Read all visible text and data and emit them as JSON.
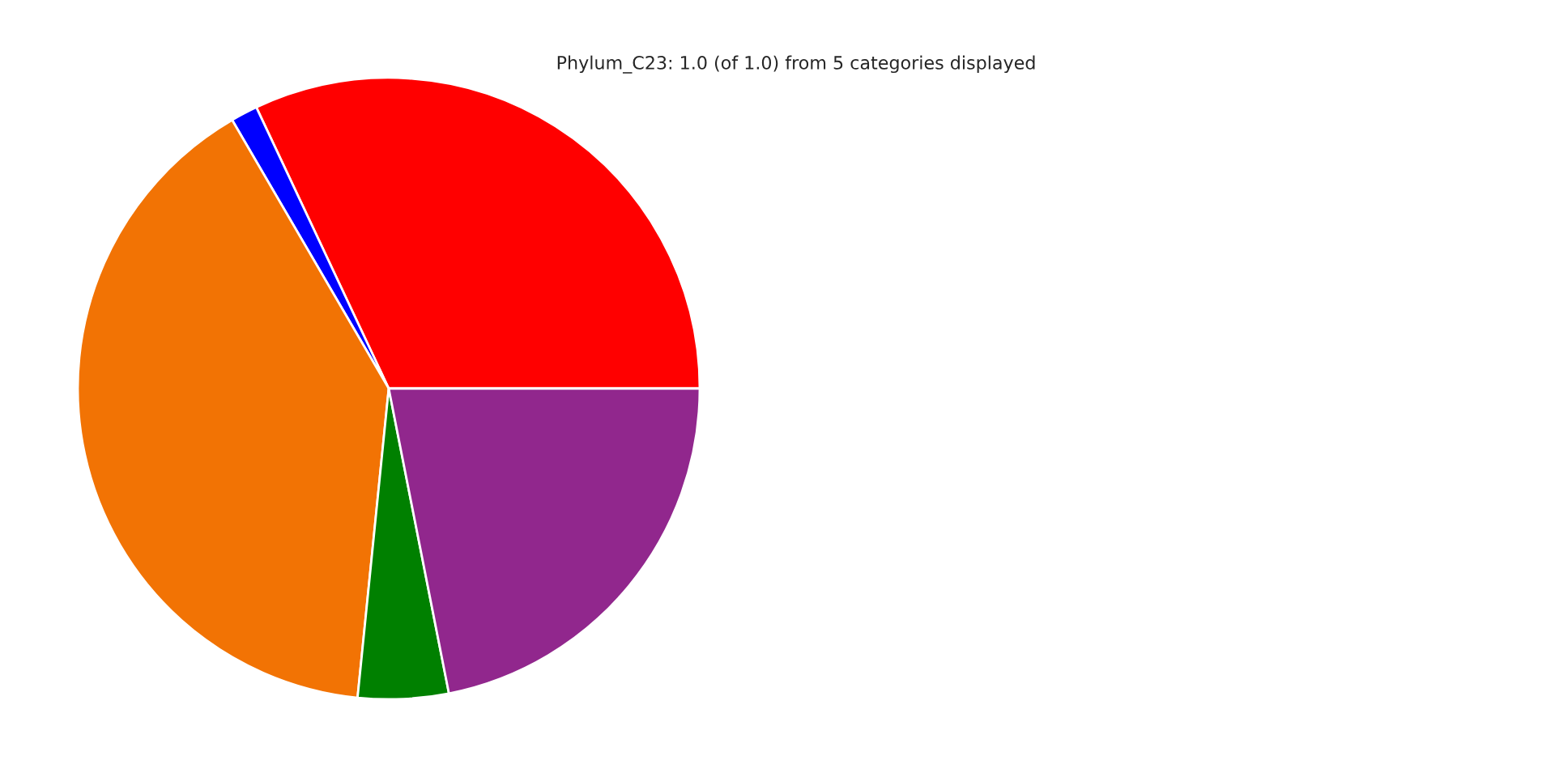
{
  "chart_data": {
    "type": "pie",
    "title": "Phylum_C23: 1.0 (of 1.0) from 5 categories displayed",
    "categories": [
      null,
      null,
      null,
      null,
      null
    ],
    "values": [
      32.0,
      1.4,
      40.0,
      4.7,
      21.9
    ],
    "colors": [
      "#ff0000",
      "#0000ff",
      "#f27304",
      "#008000",
      "#91278d"
    ]
  }
}
